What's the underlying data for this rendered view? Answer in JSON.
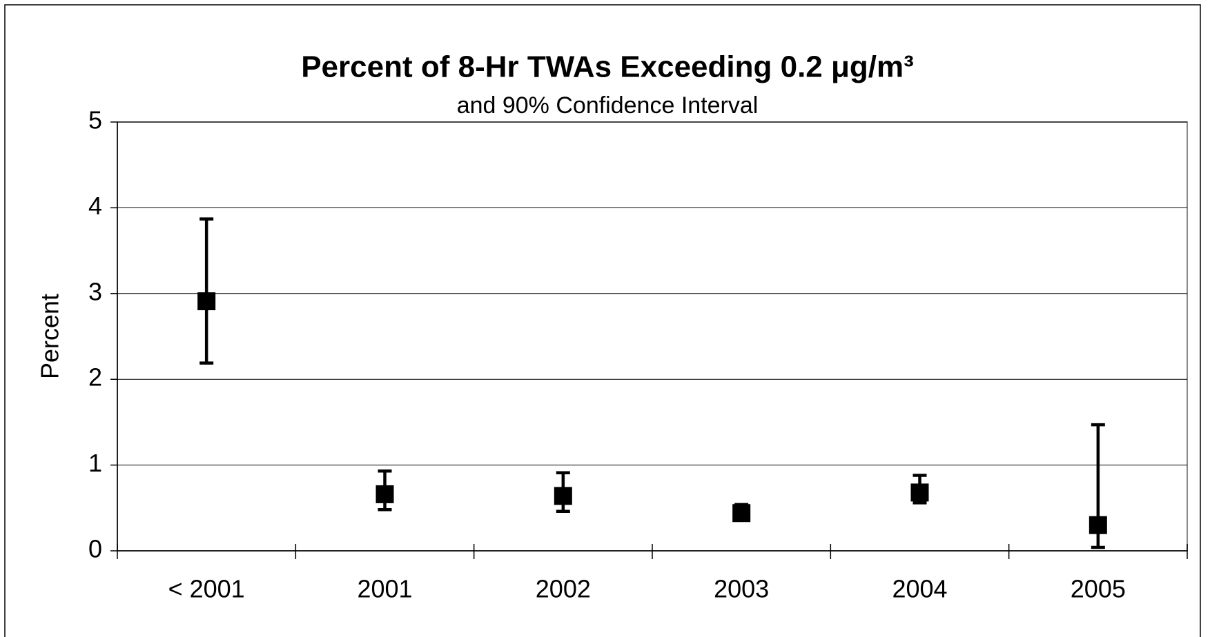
{
  "chart_data": {
    "type": "errorbar",
    "title": "Percent of 8-Hr TWAs Exceeding 0.2 μg/m³",
    "subtitle": "and 90% Confidence Interval",
    "y_label": "Percent",
    "categories": [
      "< 2001",
      "2001",
      "2002",
      "2003",
      "2004",
      "2005"
    ],
    "values": [
      2.91,
      0.66,
      0.64,
      0.44,
      0.68,
      0.3
    ],
    "low": [
      2.19,
      0.48,
      0.46,
      0.38,
      0.56,
      0.04
    ],
    "high": [
      3.87,
      0.93,
      0.91,
      0.54,
      0.88,
      1.47
    ],
    "color": "#000000",
    "ylim": [
      0,
      5
    ],
    "yticks": [
      0,
      1,
      2,
      3,
      4,
      5
    ],
    "grid": true
  }
}
